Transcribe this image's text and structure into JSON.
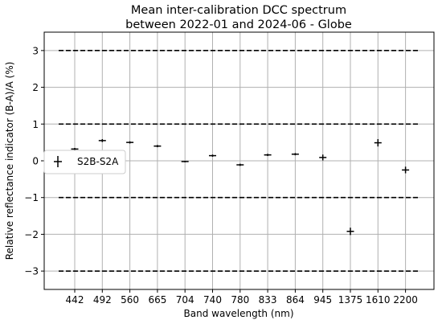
{
  "chart_data": {
    "type": "scatter",
    "title_line1": "Mean inter-calibration DCC spectrum",
    "title_line2": "between 2022-01 and 2024-06 - Globe",
    "xlabel": "Band wavelength (nm)",
    "ylabel": "Relative reflectance indicator (B-A)/A (%)",
    "categories": [
      "442",
      "492",
      "560",
      "665",
      "704",
      "740",
      "780",
      "833",
      "864",
      "945",
      "1375",
      "1610",
      "2200"
    ],
    "series": [
      {
        "name": "S2B-S2A",
        "values": [
          0.32,
          0.55,
          0.5,
          0.4,
          -0.02,
          0.14,
          -0.11,
          0.16,
          0.18,
          0.09,
          -1.92,
          0.49,
          -0.25
        ],
        "errors": [
          0.03,
          0.04,
          0.03,
          0.03,
          0.02,
          0.03,
          0.03,
          0.03,
          0.03,
          0.08,
          0.1,
          0.1,
          0.09
        ]
      }
    ],
    "ylim": [
      -3.5,
      3.5
    ],
    "yticks": [
      -3,
      -2,
      -1,
      0,
      1,
      2,
      3
    ],
    "ytick_labels": [
      "−3",
      "−2",
      "−1",
      "0",
      "1",
      "2",
      "3"
    ],
    "reference_lines": [
      3,
      1,
      -1,
      -3
    ],
    "grid": true,
    "legend": "middle-left",
    "colors": {
      "marker": "#000000",
      "grid": "#b0b0b0",
      "reference": "#000000"
    }
  }
}
